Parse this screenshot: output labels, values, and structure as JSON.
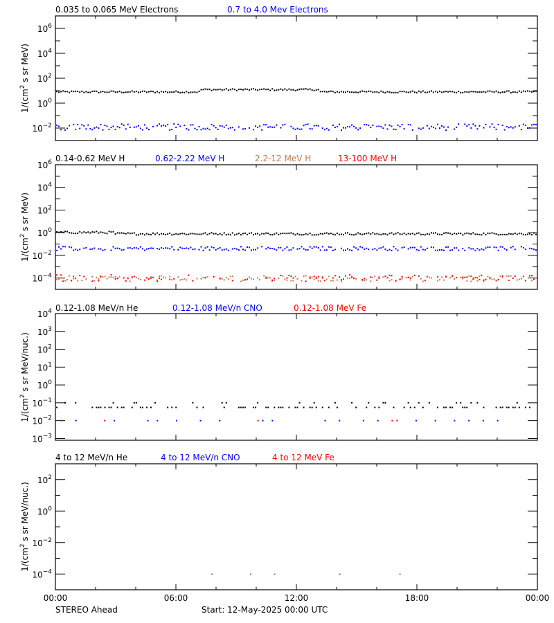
{
  "chart_data": [
    {
      "type": "scatter",
      "title": "",
      "legend": [
        "0.035 to 0.065 MeV Electrons",
        "0.7 to 4.0 Mev Electrons"
      ],
      "ylabel": "1/(cm² s sr MeV)",
      "yscale": "log",
      "ylim": [
        0.001,
        10000000
      ],
      "yticks": [
        "10^6",
        "10^4",
        "10^2",
        "10^0",
        "10^-2"
      ],
      "series": [
        {
          "name": "0.035 to 0.065 MeV Electrons",
          "color": "#000000",
          "typical_value": 8,
          "note": "~8 with small bump to ~13 near 07:00-08:00, spike ~25 at ~07:10"
        },
        {
          "name": "0.7 to 4.0 Mev Electrons",
          "color": "#0000ff",
          "typical_value": 0.012,
          "note": "scattered 0.004-0.02"
        }
      ]
    },
    {
      "type": "scatter",
      "legend": [
        "0.14-0.62 MeV H",
        "0.62-2.22 MeV H",
        "2.2-12 MeV H",
        "13-100 MeV H"
      ],
      "ylabel": "1/(cm² s sr MeV)",
      "yscale": "log",
      "ylim": [
        1e-05,
        1000000
      ],
      "yticks": [
        "10^6",
        "10^4",
        "10^2",
        "10^0",
        "10^-2",
        "10^-4"
      ],
      "series": [
        {
          "name": "0.14-0.62 MeV H",
          "color": "#000000",
          "typical_value": 0.8
        },
        {
          "name": "0.62-2.22 MeV H",
          "color": "#0000ff",
          "typical_value": 0.04
        },
        {
          "name": "2.2-12 MeV H",
          "color": "#c87850",
          "typical_value": 0.0001
        },
        {
          "name": "13-100 MeV H",
          "color": "#ff0000",
          "typical_value": 0.0001
        }
      ]
    },
    {
      "type": "scatter",
      "legend": [
        "0.12-1.08 MeV/n He",
        "0.12-1.08 MeV/n CNO",
        "0.12-1.08 MeV Fe"
      ],
      "ylabel": "1/(cm² s sr MeV/nuc.)",
      "yscale": "log",
      "ylim": [
        0.0006,
        10000
      ],
      "yticks": [
        "10^4",
        "10^3",
        "10^2",
        "10^1",
        "10^0",
        "10^-1",
        "10^-2",
        "10^-3"
      ],
      "series": [
        {
          "name": "0.12-1.08 MeV/n He",
          "color": "#000000",
          "typical_value": 0.05,
          "note": "sparse points at ~0.05 and ~0.1"
        },
        {
          "name": "0.12-1.08 MeV/n CNO",
          "color": "#0000ff",
          "typical_value": 0.01,
          "note": "sparse points at ~0.01"
        },
        {
          "name": "0.12-1.08 MeV Fe",
          "color": "#ff0000",
          "typical_value": 0.01,
          "note": "few points at ~0.01 near 00:20, 02:40, 10:10, 16:30"
        }
      ]
    },
    {
      "type": "scatter",
      "legend": [
        "4 to 12 MeV/n He",
        "4 to 12 MeV/n CNO",
        "4 to 12 MeV Fe"
      ],
      "ylabel": "1/(cm² s sr MeV/nuc.)",
      "yscale": "log",
      "ylim": [
        1e-05,
        1000
      ],
      "yticks": [
        "10^2",
        "10^0",
        "10^-2",
        "10^-4"
      ],
      "series": [
        {
          "name": "4 to 12 MeV/n He",
          "color": "#000000",
          "typical_value": 0.0001,
          "note": "points at ~07:50, ~09:50, ~11:00, ~14:20, ~17:20"
        },
        {
          "name": "4 to 12 MeV/n CNO",
          "color": "#0000ff",
          "typical_value": null
        },
        {
          "name": "4 to 12 MeV Fe",
          "color": "#ff0000",
          "typical_value": null
        }
      ]
    }
  ],
  "xaxis": {
    "ticks": [
      "00:00",
      "06:00",
      "12:00",
      "18:00",
      "00:00"
    ]
  },
  "footer": {
    "spacecraft": "STEREO Ahead",
    "start": "Start: 12-May-2025 00:00 UTC"
  },
  "panels": [
    {
      "legend": [
        {
          "text": "0.035 to 0.065 MeV Electrons",
          "color": "#000000"
        },
        {
          "text": "0.7 to 4.0 Mev Electrons",
          "color": "#0000ff"
        }
      ],
      "ylabel": "1/(cm² s sr MeV)"
    },
    {
      "legend": [
        {
          "text": "0.14-0.62 MeV H",
          "color": "#000000"
        },
        {
          "text": "0.62-2.22 MeV H",
          "color": "#0000ff"
        },
        {
          "text": "2.2-12 MeV H",
          "color": "#c87850"
        },
        {
          "text": "13-100 MeV H",
          "color": "#ff0000"
        }
      ],
      "ylabel": "1/(cm² s sr MeV)"
    },
    {
      "legend": [
        {
          "text": "0.12-1.08 MeV/n He",
          "color": "#000000"
        },
        {
          "text": "0.12-1.08 MeV/n CNO",
          "color": "#0000ff"
        },
        {
          "text": "0.12-1.08 MeV Fe",
          "color": "#ff0000"
        }
      ],
      "ylabel": "1/(cm² s sr MeV/nuc.)"
    },
    {
      "legend": [
        {
          "text": "4 to 12 MeV/n He",
          "color": "#000000"
        },
        {
          "text": "4 to 12 MeV/n CNO",
          "color": "#0000ff"
        },
        {
          "text": "4 to 12 MeV Fe",
          "color": "#ff0000"
        }
      ],
      "ylabel": "1/(cm² s sr MeV/nuc.)"
    }
  ]
}
